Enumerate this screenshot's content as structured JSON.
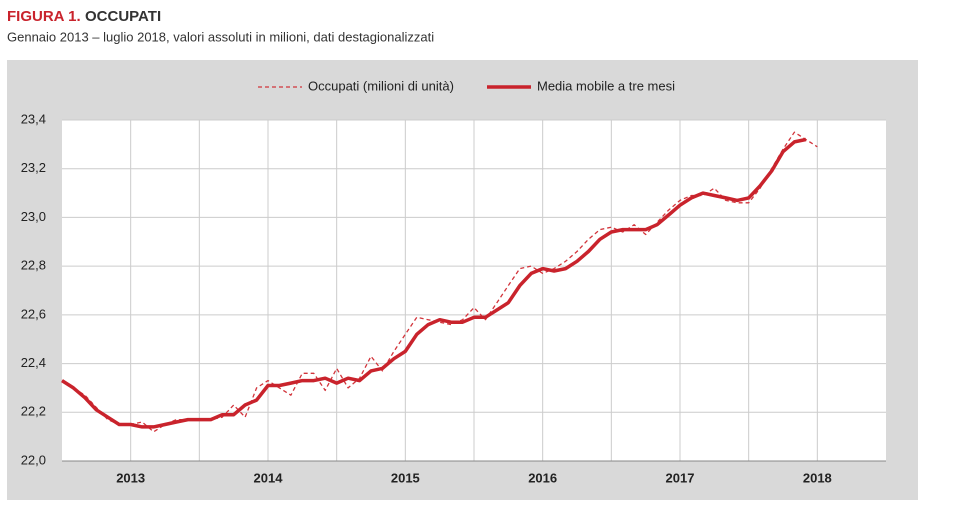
{
  "figure_label": "FIGURA 1.",
  "chart_data": {
    "type": "line",
    "title": "OCCUPATI",
    "subtitle": "Gennaio 2013 – luglio 2018, valori assoluti in milioni, dati destagionalizzati",
    "categories": [
      null,
      null,
      null,
      null,
      null,
      null,
      "2013",
      null,
      null,
      null,
      null,
      null,
      null,
      null,
      null,
      null,
      null,
      null,
      "2014",
      null,
      null,
      null,
      null,
      null,
      null,
      null,
      null,
      null,
      null,
      null,
      "2015",
      null,
      null,
      null,
      null,
      null,
      null,
      null,
      null,
      null,
      null,
      null,
      "2016",
      null,
      null,
      null,
      null,
      null,
      null,
      null,
      null,
      null,
      null,
      null,
      "2017",
      null,
      null,
      null,
      null,
      null,
      null,
      null,
      null,
      null,
      null,
      null,
      "2018",
      null,
      null,
      null,
      null,
      null
    ],
    "series": [
      {
        "name": "Occupati (milioni di unità)",
        "color": "#d2343b",
        "dashed": true,
        "values": [
          22.33,
          22.3,
          22.27,
          22.22,
          22.17,
          22.15,
          22.15,
          22.16,
          22.12,
          22.15,
          22.17,
          22.17,
          22.17,
          22.17,
          22.18,
          22.23,
          22.18,
          22.3,
          22.33,
          22.3,
          22.27,
          22.36,
          22.36,
          22.29,
          22.38,
          22.3,
          22.34,
          22.43,
          22.37,
          22.45,
          22.52,
          22.59,
          22.58,
          22.57,
          22.56,
          22.58,
          22.63,
          22.58,
          22.65,
          22.72,
          22.79,
          22.8,
          22.77,
          22.79,
          22.82,
          22.86,
          22.91,
          22.95,
          22.96,
          22.94,
          22.97,
          22.93,
          22.98,
          23.03,
          23.07,
          23.09,
          23.09,
          23.12,
          23.07,
          23.06,
          23.06,
          23.12,
          23.2,
          23.28,
          23.35,
          23.32,
          23.29,
          null,
          null,
          null,
          null,
          null
        ]
      },
      {
        "name": "Media mobile a tre mesi",
        "color": "#c9232c",
        "dashed": false,
        "values": [
          22.33,
          22.3,
          22.26,
          22.21,
          22.18,
          22.15,
          22.15,
          22.14,
          22.14,
          22.15,
          22.16,
          22.17,
          22.17,
          22.17,
          22.19,
          22.19,
          22.23,
          22.25,
          22.31,
          22.31,
          22.32,
          22.33,
          22.33,
          22.34,
          22.32,
          22.34,
          22.33,
          22.37,
          22.38,
          22.42,
          22.45,
          22.52,
          22.56,
          22.58,
          22.57,
          22.57,
          22.59,
          22.59,
          22.62,
          22.65,
          22.72,
          22.77,
          22.79,
          22.78,
          22.79,
          22.82,
          22.86,
          22.91,
          22.94,
          22.95,
          22.95,
          22.95,
          22.97,
          23.01,
          23.05,
          23.08,
          23.1,
          23.09,
          23.08,
          23.07,
          23.08,
          23.13,
          23.19,
          23.27,
          23.31,
          23.32,
          null,
          null,
          null,
          null,
          null,
          null
        ]
      }
    ],
    "ylim": [
      22.0,
      23.4
    ],
    "yticks": [
      {
        "value": 22.0,
        "label": "22,0"
      },
      {
        "value": 22.2,
        "label": "22,2"
      },
      {
        "value": 22.4,
        "label": "22,4"
      },
      {
        "value": 22.6,
        "label": "22,6"
      },
      {
        "value": 22.8,
        "label": "22,8"
      },
      {
        "value": 23.0,
        "label": "23,0"
      },
      {
        "value": 23.2,
        "label": "23,2"
      },
      {
        "value": 23.4,
        "label": "23,4"
      }
    ],
    "grid": true
  }
}
